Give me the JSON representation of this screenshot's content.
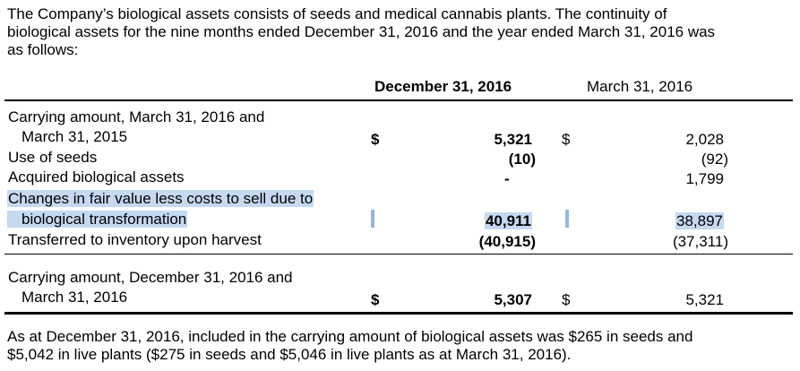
{
  "intro": {
    "line1": "The Company’s biological assets consists of seeds and medical cannabis plants. The continuity of",
    "line2": "biological assets for the nine months ended December 31, 2016 and the year ended March 31, 2016 was",
    "line3": "as follows:"
  },
  "table": {
    "headers": {
      "col1": "December 31, 2016",
      "col2": "March 31, 2016"
    },
    "currency_symbol": "$",
    "rows": {
      "opening": {
        "label_line1": "Carrying amount, March 31, 2016 and",
        "label_line2": "March 31, 2015",
        "dec": "5,321",
        "mar": "2,028"
      },
      "use_of_seeds": {
        "label": "Use of seeds",
        "dec": "(10)",
        "mar": "(92)"
      },
      "acquired": {
        "label": "Acquired biological assets",
        "dec": "-",
        "mar": "1,799"
      },
      "fair_value": {
        "label_line1": "Changes in fair value less costs to sell due to",
        "label_line2": "biological transformation",
        "dec": "40,911",
        "mar": "38,897"
      },
      "transferred": {
        "label": "Transferred to inventory upon harvest",
        "dec": "(40,915)",
        "mar": "(37,311)"
      },
      "closing": {
        "label_line1": "Carrying amount, December 31, 2016 and",
        "label_line2": "March 31, 2016",
        "dec": "5,307",
        "mar": "5,321"
      }
    }
  },
  "footer": {
    "line1": "As at December 31, 2016, included in the carrying amount of biological assets was $265 in seeds and",
    "line2": "$5,042 in live plants ($275 in seeds and $5,046 in live plants as at March 31, 2016)."
  }
}
